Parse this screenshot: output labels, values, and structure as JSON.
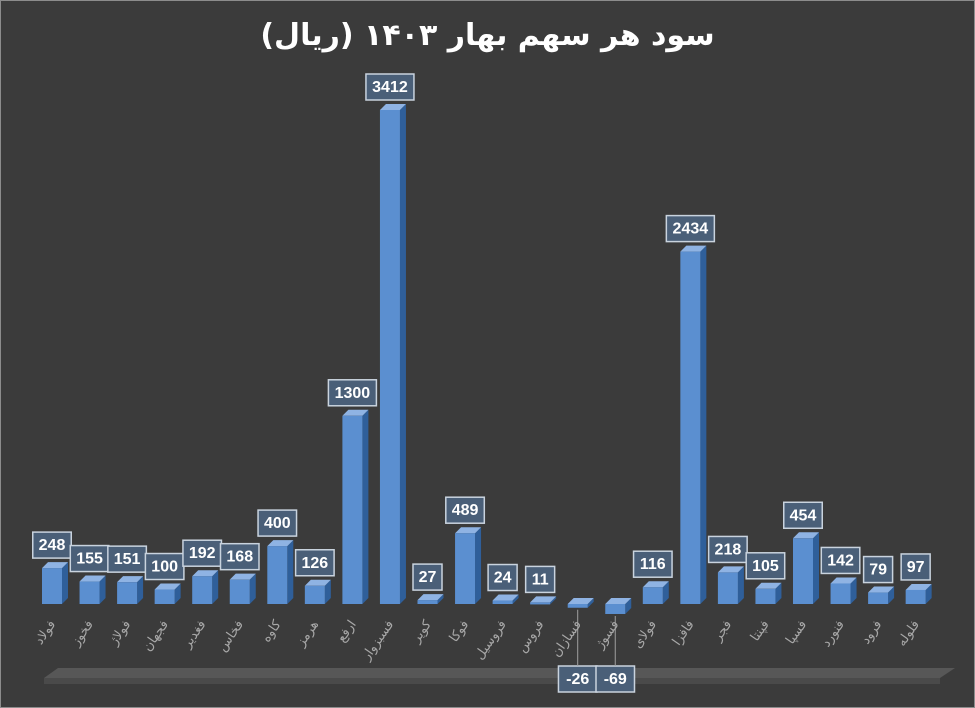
{
  "chart_data": {
    "type": "bar",
    "title": "سود هر سهم بهار ۱۴۰۳ (ریال)",
    "categories": [
      "فولاد",
      "فخوز",
      "فولاژ",
      "فجهان",
      "فغدیر",
      "فخاس",
      "کاوه",
      "هرمز",
      "ارفع",
      "فسبزوار",
      "کویر",
      "فوکا",
      "فروسیل",
      "فروس",
      "فسازان",
      "فسوژ",
      "فولای",
      "فافزا",
      "فجر",
      "فپنتا",
      "فسپا",
      "فنورد",
      "فرود",
      "فلوله"
    ],
    "values": [
      248,
      155,
      151,
      100,
      192,
      168,
      400,
      126,
      1300,
      3412,
      27,
      489,
      24,
      11,
      -26,
      -69,
      116,
      2434,
      218,
      105,
      454,
      142,
      79,
      97
    ],
    "xlabel": "",
    "ylabel": "",
    "ylim": [
      -69,
      3412
    ],
    "grid": false,
    "legend": "none",
    "bar_color": "#5b8fd0",
    "bar_side_color": "#2f5f9a",
    "bar_top_color": "#8fb3e3",
    "label_box_color": "#4a5f78"
  }
}
